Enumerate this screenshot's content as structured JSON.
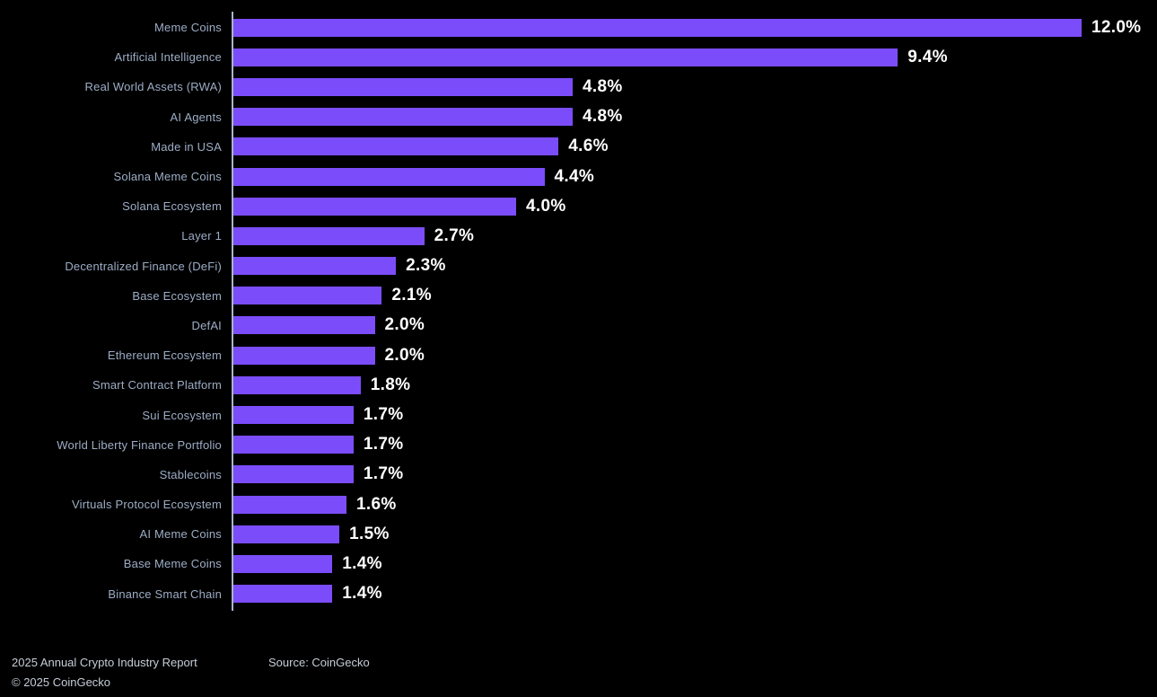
{
  "chart_data": {
    "type": "bar",
    "orientation": "horizontal",
    "title": "",
    "xlabel": "",
    "ylabel": "",
    "grid": false,
    "legend": "none",
    "xlim": [
      0,
      12.7
    ],
    "categories": [
      "Meme Coins",
      "Artificial Intelligence",
      "Real World Assets (RWA)",
      "AI Agents",
      "Made in USA",
      "Solana Meme Coins",
      "Solana Ecosystem",
      "Layer 1",
      "Decentralized Finance (DeFi)",
      "Base Ecosystem",
      "DefAI",
      "Ethereum Ecosystem",
      "Smart Contract Platform",
      "Sui Ecosystem",
      "World Liberty Finance Portfolio",
      "Stablecoins",
      "Virtuals Protocol Ecosystem",
      "AI Meme Coins",
      "Base Meme Coins",
      "Binance Smart Chain"
    ],
    "values": [
      12.0,
      9.4,
      4.8,
      4.8,
      4.6,
      4.4,
      4.0,
      2.7,
      2.3,
      2.1,
      2.0,
      2.0,
      1.8,
      1.7,
      1.7,
      1.7,
      1.6,
      1.5,
      1.4,
      1.4
    ],
    "value_labels": [
      "12.0%",
      "9.4%",
      "4.8%",
      "4.8%",
      "4.6%",
      "4.4%",
      "4.0%",
      "2.7%",
      "2.3%",
      "2.1%",
      "2.0%",
      "2.0%",
      "1.8%",
      "1.7%",
      "1.7%",
      "1.7%",
      "1.6%",
      "1.5%",
      "1.4%",
      "1.4%"
    ],
    "bar_color": "#7B4CFA",
    "axis_color": "#A9B6C6",
    "category_label_color": "#9DADC6",
    "value_label_color": "#FFFFFF",
    "background_color": "#000000"
  },
  "footer": {
    "report": "2025 Annual Crypto Industry Report",
    "copyright": "© 2025 CoinGecko",
    "source": "Source: CoinGecko"
  }
}
